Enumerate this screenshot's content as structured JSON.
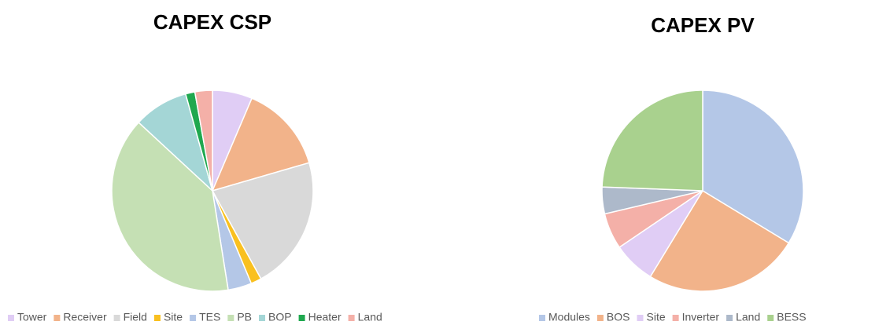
{
  "chart_data": [
    {
      "type": "pie",
      "title": "CAPEX CSP",
      "categories": [
        "Tower",
        "Receiver",
        "Field",
        "Site",
        "TES",
        "PB",
        "BOP",
        "Heater",
        "Land"
      ],
      "values": [
        6.4,
        14.1,
        21.5,
        1.7,
        3.8,
        39.4,
        8.8,
        1.5,
        2.8
      ],
      "colors": [
        "#e0cdf5",
        "#f2b38a",
        "#d9d9d9",
        "#f9c020",
        "#b4c7e7",
        "#c5e0b4",
        "#a4d6d6",
        "#1fa84f",
        "#f4b0a8"
      ],
      "legend": "bottom"
    },
    {
      "type": "pie",
      "title": "CAPEX PV",
      "categories": [
        "Modules",
        "BOS",
        "Site",
        "Inverter",
        "Land",
        "BESS"
      ],
      "values": [
        33.7,
        25.0,
        6.8,
        5.8,
        4.3,
        24.4
      ],
      "colors": [
        "#b4c7e7",
        "#f2b38a",
        "#e0cdf5",
        "#f4b0a8",
        "#adb9ca",
        "#a9d18e"
      ],
      "legend": "bottom"
    }
  ]
}
